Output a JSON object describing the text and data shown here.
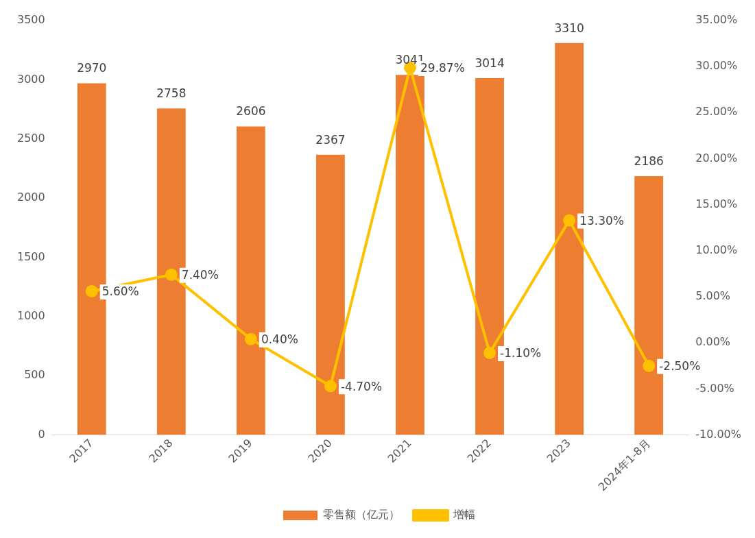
{
  "chart_data": {
    "type": "bar",
    "categories": [
      "2017",
      "2018",
      "2019",
      "2020",
      "2021",
      "2022",
      "2023",
      "2024年1-8月"
    ],
    "series": [
      {
        "name": "零售额（亿元）",
        "color": "#ed7d31",
        "values": [
          2970,
          2758,
          2606,
          2367,
          3041,
          3014,
          3310,
          2186
        ],
        "value_labels": [
          "2970",
          "2758",
          "2606",
          "2367",
          "3041",
          "3014",
          "3310",
          "2186"
        ]
      },
      {
        "name": "增幅",
        "type": "line",
        "axis": "y2",
        "color": "#ffc000",
        "marker": "circle",
        "values": [
          5.6,
          7.4,
          0.4,
          -4.7,
          29.87,
          -1.1,
          13.3,
          -2.5
        ],
        "value_labels": [
          "5.60%",
          "7.40%",
          "0.40%",
          "-4.70%",
          "29.87%",
          "-1.10%",
          "13.30%",
          "-2.50%"
        ]
      }
    ],
    "ylim": [
      0,
      3500
    ],
    "yticks": [
      0,
      500,
      1000,
      1500,
      2000,
      2500,
      3000,
      3500
    ],
    "y2lim": [
      -10,
      35
    ],
    "y2ticks": [
      {
        "value": -10,
        "label": "-10.00%"
      },
      {
        "value": -5,
        "label": "-5.00%"
      },
      {
        "value": 0,
        "label": "0.00%"
      },
      {
        "value": 5,
        "label": "5.00%"
      },
      {
        "value": 10,
        "label": "10.00%"
      },
      {
        "value": 15,
        "label": "15.00%"
      },
      {
        "value": 20,
        "label": "20.00%"
      },
      {
        "value": 25,
        "label": "25.00%"
      },
      {
        "value": 30,
        "label": "30.00%"
      },
      {
        "value": 35,
        "label": "35.00%"
      }
    ],
    "grid": false,
    "legend": "bottom"
  }
}
